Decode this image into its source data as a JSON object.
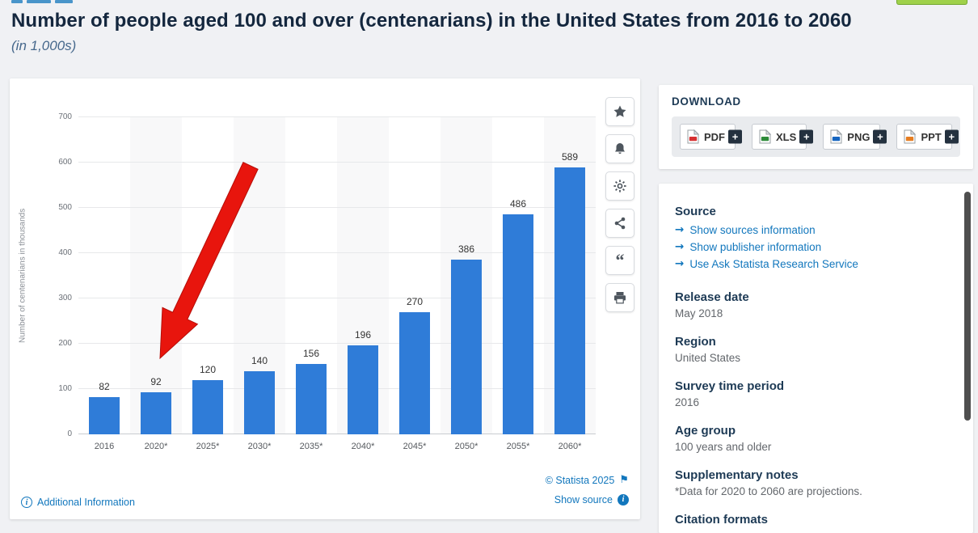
{
  "page": {
    "title": "Number of people aged 100 and over (centenarians) in the United States from 2016 to 2060",
    "subtitle": "(in 1,000s)"
  },
  "chart_data": {
    "type": "bar",
    "title": "Number of people aged 100 and over (centenarians) in the United States from 2016 to 2060",
    "categories": [
      "2016",
      "2020*",
      "2025*",
      "2030*",
      "2035*",
      "2040*",
      "2045*",
      "2050*",
      "2055*",
      "2060*"
    ],
    "values": [
      82,
      92,
      120,
      140,
      156,
      196,
      270,
      386,
      486,
      589
    ],
    "xlabel": "",
    "ylabel": "Number of centenarians in thousands",
    "ylim": [
      0,
      700
    ],
    "yticks": [
      0,
      100,
      200,
      300,
      400,
      500,
      600,
      700
    ],
    "grid": true,
    "legend": "none",
    "bar_color": "#2f7cd8",
    "annotation": {
      "type": "arrow",
      "points_to": "2020*",
      "color": "#e8150d"
    }
  },
  "chart_card": {
    "toolbar_icons": [
      "star",
      "bell",
      "gear",
      "share",
      "quote",
      "print"
    ],
    "footer": {
      "additional_info": "Additional Information",
      "copyright": "© Statista 2025",
      "show_source": "Show source"
    }
  },
  "download": {
    "heading": "DOWNLOAD",
    "plus": "+",
    "buttons": [
      {
        "label": "PDF",
        "color": "#d63031"
      },
      {
        "label": "XLS",
        "color": "#2e8b3a"
      },
      {
        "label": "PNG",
        "color": "#1565c0"
      },
      {
        "label": "PPT",
        "color": "#e67e22"
      }
    ]
  },
  "details": {
    "source_heading": "Source",
    "links": [
      "Show sources information",
      "Show publisher information",
      "Use Ask Statista Research Service"
    ],
    "sections": [
      {
        "heading": "Release date",
        "value": "May 2018"
      },
      {
        "heading": "Region",
        "value": "United States"
      },
      {
        "heading": "Survey time period",
        "value": "2016"
      },
      {
        "heading": "Age group",
        "value": "100 years and older"
      },
      {
        "heading": "Supplementary notes",
        "value": "*Data for 2020 to 2060 are projections."
      },
      {
        "heading": "Citation formats",
        "value": ""
      }
    ]
  }
}
